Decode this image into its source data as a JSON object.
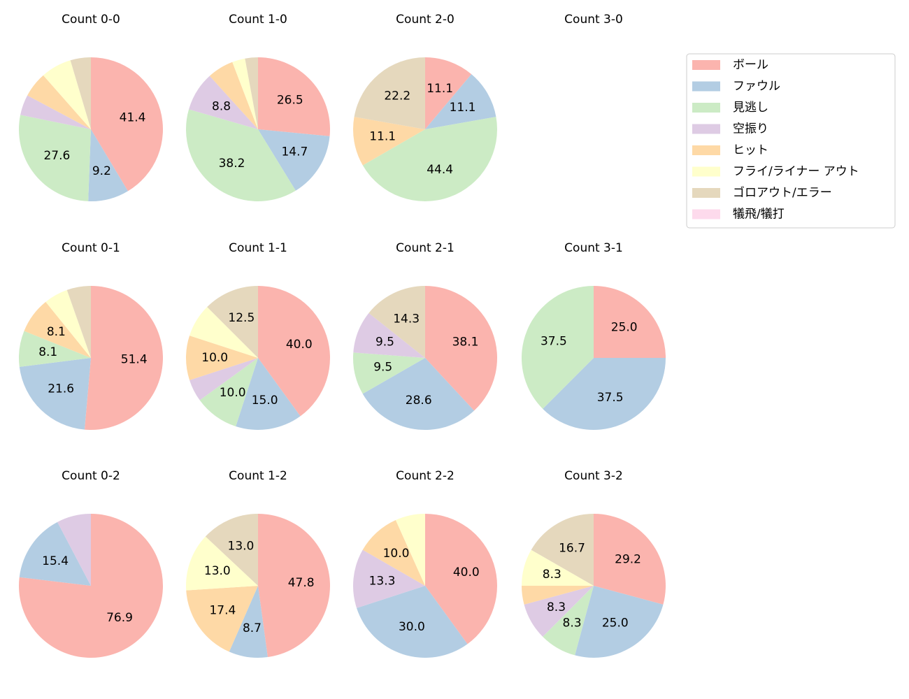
{
  "legend": {
    "entries": [
      "ボール",
      "ファウル",
      "見逃し",
      "空振り",
      "ヒット",
      "フライ/ライナー アウト",
      "ゴロアウト/エラー",
      "犠飛/犠打"
    ],
    "colors": [
      "#fbb4ae",
      "#b3cde3",
      "#ccebc5",
      "#decbe4",
      "#fed9a6",
      "#ffffcc",
      "#e5d8bd",
      "#fddaec"
    ],
    "position": "upper right"
  },
  "chart_data": [
    {
      "type": "pie",
      "title": "Count 0-0",
      "values": [
        41.4,
        9.2,
        27.6,
        4.6,
        5.7,
        6.9,
        4.6,
        0
      ],
      "value_labels": [
        "41.4",
        "9.2",
        "27.6",
        null,
        null,
        null,
        null,
        null
      ]
    },
    {
      "type": "pie",
      "title": "Count 1-0",
      "values": [
        26.5,
        14.7,
        38.2,
        8.8,
        5.9,
        2.9,
        2.9,
        0
      ],
      "value_labels": [
        "26.5",
        "14.7",
        "38.2",
        "8.8",
        null,
        null,
        null,
        null
      ]
    },
    {
      "type": "pie",
      "title": "Count 2-0",
      "values": [
        11.1,
        11.1,
        44.4,
        0,
        11.1,
        0,
        22.2,
        0
      ],
      "value_labels": [
        "11.1",
        "11.1",
        "44.4",
        null,
        "11.1",
        null,
        "22.2",
        null
      ]
    },
    {
      "type": "pie",
      "title": "Count 3-0",
      "values": []
    },
    {
      "type": "pie",
      "title": "Count 0-1",
      "values": [
        51.4,
        21.6,
        8.1,
        0,
        8.1,
        5.4,
        5.4,
        0
      ],
      "value_labels": [
        "51.4",
        "21.6",
        "8.1",
        null,
        "8.1",
        null,
        null,
        null
      ]
    },
    {
      "type": "pie",
      "title": "Count 1-1",
      "values": [
        40.0,
        15.0,
        10.0,
        5.0,
        10.0,
        7.5,
        12.5,
        0
      ],
      "value_labels": [
        "40.0",
        "15.0",
        "10.0",
        null,
        "10.0",
        null,
        "12.5",
        null
      ]
    },
    {
      "type": "pie",
      "title": "Count 2-1",
      "values": [
        38.1,
        28.6,
        9.5,
        9.5,
        0,
        0,
        14.3,
        0
      ],
      "value_labels": [
        "38.1",
        "28.6",
        "9.5",
        "9.5",
        null,
        null,
        "14.3",
        null
      ]
    },
    {
      "type": "pie",
      "title": "Count 3-1",
      "values": [
        25.0,
        37.5,
        37.5,
        0,
        0,
        0,
        0,
        0
      ],
      "value_labels": [
        "25.0",
        "37.5",
        "37.5",
        null,
        null,
        null,
        null,
        null
      ]
    },
    {
      "type": "pie",
      "title": "Count 0-2",
      "values": [
        76.9,
        15.4,
        0,
        7.7,
        0,
        0,
        0,
        0
      ],
      "value_labels": [
        "76.9",
        "15.4",
        null,
        null,
        null,
        null,
        null,
        null
      ]
    },
    {
      "type": "pie",
      "title": "Count 1-2",
      "values": [
        47.8,
        8.7,
        0,
        0,
        17.4,
        13.0,
        13.0,
        0
      ],
      "value_labels": [
        "47.8",
        "8.7",
        null,
        null,
        "17.4",
        "13.0",
        "13.0",
        null
      ]
    },
    {
      "type": "pie",
      "title": "Count 2-2",
      "values": [
        40.0,
        30.0,
        0,
        13.3,
        10.0,
        6.7,
        0,
        0
      ],
      "value_labels": [
        "40.0",
        "30.0",
        null,
        "13.3",
        "10.0",
        null,
        null,
        null
      ]
    },
    {
      "type": "pie",
      "title": "Count 3-2",
      "values": [
        29.2,
        25.0,
        8.3,
        8.3,
        4.2,
        8.3,
        16.7,
        0
      ],
      "value_labels": [
        "29.2",
        "25.0",
        "8.3",
        "8.3",
        null,
        "8.3",
        "16.7",
        null
      ]
    }
  ]
}
